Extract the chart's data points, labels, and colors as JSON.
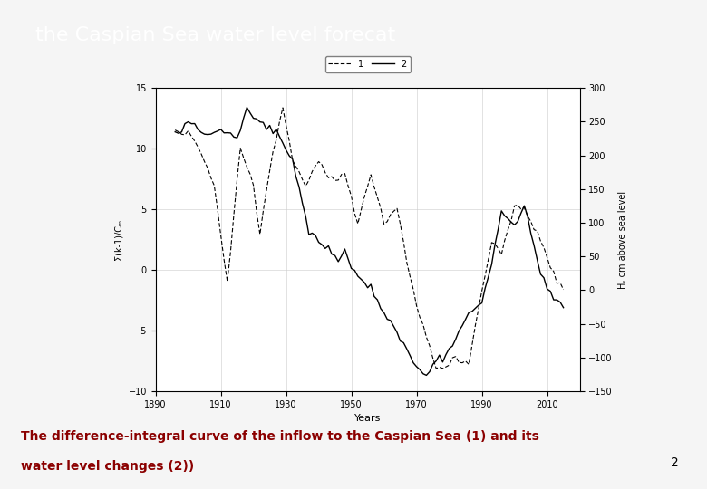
{
  "title": "the Caspian Sea water level forecat",
  "title_bg_color": "#4a6f8a",
  "title_text_color": "#ffffff",
  "xlabel": "Years",
  "ylabel_left": "Σ(k-1)/Cₘ",
  "ylabel_right": "H, cm above sea level",
  "xlim": [
    1890,
    2020
  ],
  "ylim_left": [
    -10,
    15
  ],
  "ylim_right": [
    -150,
    300
  ],
  "yticks_left": [
    -10,
    -5,
    0,
    5,
    10,
    15
  ],
  "yticks_right": [
    -150,
    -100,
    -50,
    0,
    50,
    100,
    150,
    200,
    250,
    300
  ],
  "xticks": [
    1890,
    1910,
    1930,
    1950,
    1970,
    1990,
    2010
  ],
  "bottom_text_line1": "The difference-integral curve of the inflow to the Caspian Sea (1) and its",
  "bottom_text_line2": "water level changes (2))",
  "bottom_text_color": "#8b0000",
  "page_number": "2",
  "legend_label1": "1",
  "legend_label2": "2",
  "background_color": "#f0f0f0"
}
